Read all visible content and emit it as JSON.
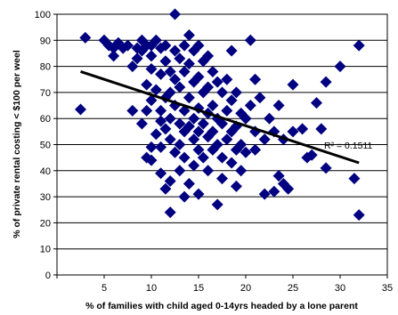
{
  "chart_data": {
    "type": "scatter",
    "title": "",
    "xlabel": "% of families with child aged 0-14yrs headed by a lone parent",
    "ylabel": "% of private rental costing < $100 per weel",
    "xlim": [
      0,
      35
    ],
    "ylim": [
      0,
      100
    ],
    "x_ticks": [
      "5",
      "10",
      "15",
      "20",
      "25",
      "30",
      "35"
    ],
    "y_ticks": [
      "0",
      "10",
      "20",
      "30",
      "40",
      "50",
      "60",
      "70",
      "80",
      "90",
      "100"
    ],
    "grid": "horizontal",
    "legend": "none",
    "marker": "diamond",
    "marker_color": "#000080",
    "trendline": {
      "type": "linear",
      "x": [
        2.5,
        32
      ],
      "y": [
        78,
        43
      ],
      "color": "#000000"
    },
    "annotation": "R² = 0.1511",
    "series": [
      {
        "points": [
          [
            2.5,
            63.5
          ],
          [
            3,
            91
          ],
          [
            5,
            90
          ],
          [
            5.5,
            88
          ],
          [
            6,
            84
          ],
          [
            6,
            87
          ],
          [
            6.5,
            89
          ],
          [
            7,
            87
          ],
          [
            7.5,
            88
          ],
          [
            8,
            80
          ],
          [
            8,
            63
          ],
          [
            8.5,
            87
          ],
          [
            8.5,
            83
          ],
          [
            9,
            90
          ],
          [
            9,
            86
          ],
          [
            9,
            58
          ],
          [
            9.5,
            88
          ],
          [
            9.5,
            73
          ],
          [
            9.5,
            45
          ],
          [
            9.5,
            63
          ],
          [
            10,
            79
          ],
          [
            10,
            84
          ],
          [
            10,
            88
          ],
          [
            10,
            67
          ],
          [
            10,
            49
          ],
          [
            10,
            44
          ],
          [
            10.5,
            90
          ],
          [
            10.5,
            71
          ],
          [
            10.5,
            54
          ],
          [
            11,
            87
          ],
          [
            11,
            77
          ],
          [
            11,
            63
          ],
          [
            11,
            59
          ],
          [
            11,
            49
          ],
          [
            11,
            39
          ],
          [
            11.5,
            88
          ],
          [
            11.5,
            82
          ],
          [
            11.5,
            68
          ],
          [
            11.5,
            56
          ],
          [
            11.5,
            33
          ],
          [
            12,
            78
          ],
          [
            12,
            70
          ],
          [
            12,
            60
          ],
          [
            12,
            52
          ],
          [
            12,
            24
          ],
          [
            12,
            36
          ],
          [
            12.5,
            100
          ],
          [
            12.5,
            86
          ],
          [
            12.5,
            75
          ],
          [
            12.5,
            65
          ],
          [
            12.5,
            47
          ],
          [
            13,
            83
          ],
          [
            13,
            72
          ],
          [
            13,
            58
          ],
          [
            13,
            50
          ],
          [
            13,
            40
          ],
          [
            13.5,
            88
          ],
          [
            13.5,
            78
          ],
          [
            13.5,
            63
          ],
          [
            13.5,
            55
          ],
          [
            13.5,
            45
          ],
          [
            13.5,
            30
          ],
          [
            14,
            92
          ],
          [
            14,
            81
          ],
          [
            14,
            68
          ],
          [
            14,
            57
          ],
          [
            14,
            35
          ],
          [
            14.5,
            86
          ],
          [
            14.5,
            74
          ],
          [
            14.5,
            60
          ],
          [
            14.5,
            52
          ],
          [
            14.5,
            42
          ],
          [
            15,
            88
          ],
          [
            15,
            76
          ],
          [
            15,
            64
          ],
          [
            15,
            55
          ],
          [
            15,
            48
          ],
          [
            15,
            31
          ],
          [
            15.5,
            82
          ],
          [
            15.5,
            70
          ],
          [
            15.5,
            58
          ],
          [
            15.5,
            45
          ],
          [
            16,
            84
          ],
          [
            16,
            72
          ],
          [
            16,
            62
          ],
          [
            16,
            53
          ],
          [
            16,
            40
          ],
          [
            16.5,
            78
          ],
          [
            16.5,
            65
          ],
          [
            16.5,
            55
          ],
          [
            16.5,
            48
          ],
          [
            17,
            74
          ],
          [
            17,
            60
          ],
          [
            17,
            50
          ],
          [
            17,
            27
          ],
          [
            17.5,
            70
          ],
          [
            17.5,
            58
          ],
          [
            17.5,
            45
          ],
          [
            17.5,
            37
          ],
          [
            18,
            75
          ],
          [
            18,
            63
          ],
          [
            18,
            52
          ],
          [
            18.5,
            86
          ],
          [
            18.5,
            67
          ],
          [
            18.5,
            55
          ],
          [
            18.5,
            43
          ],
          [
            19,
            70
          ],
          [
            19,
            57
          ],
          [
            19,
            48
          ],
          [
            19,
            34
          ],
          [
            19.5,
            62
          ],
          [
            19.5,
            50
          ],
          [
            19.5,
            40
          ],
          [
            20,
            60
          ],
          [
            20,
            47
          ],
          [
            20.5,
            90
          ],
          [
            20.5,
            65
          ],
          [
            21,
            75
          ],
          [
            21,
            55
          ],
          [
            21,
            48
          ],
          [
            21.5,
            68
          ],
          [
            22,
            52
          ],
          [
            22,
            31
          ],
          [
            22.5,
            60
          ],
          [
            23,
            55
          ],
          [
            23,
            32
          ],
          [
            23.5,
            65
          ],
          [
            23.5,
            38
          ],
          [
            24,
            52
          ],
          [
            24,
            35
          ],
          [
            24.5,
            33
          ],
          [
            25,
            73
          ],
          [
            25,
            55
          ],
          [
            26,
            56
          ],
          [
            26.5,
            45
          ],
          [
            27,
            46
          ],
          [
            27.5,
            66
          ],
          [
            28,
            56
          ],
          [
            28.5,
            41
          ],
          [
            28.5,
            74
          ],
          [
            30,
            80
          ],
          [
            31.5,
            37
          ],
          [
            32,
            88
          ],
          [
            32,
            23
          ]
        ]
      }
    ]
  }
}
